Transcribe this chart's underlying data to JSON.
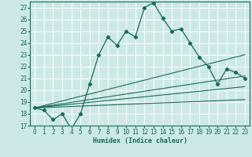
{
  "xlabel": "Humidex (Indice chaleur)",
  "bg_color": "#cce8e8",
  "grid_color": "#ffffff",
  "line_color": "#1a6b5a",
  "xlim": [
    -0.5,
    23.5
  ],
  "ylim": [
    17,
    27.5
  ],
  "xticks": [
    0,
    1,
    2,
    3,
    4,
    5,
    6,
    7,
    8,
    9,
    10,
    11,
    12,
    13,
    14,
    15,
    16,
    17,
    18,
    19,
    20,
    21,
    22,
    23
  ],
  "yticks": [
    17,
    18,
    19,
    20,
    21,
    22,
    23,
    24,
    25,
    26,
    27
  ],
  "series1_x": [
    0,
    1,
    2,
    3,
    4,
    5,
    6,
    7,
    8,
    9,
    10,
    11,
    12,
    13,
    14,
    15,
    16,
    17,
    18,
    19,
    20,
    21,
    22,
    23
  ],
  "series1_y": [
    18.5,
    18.3,
    17.5,
    18.0,
    16.7,
    18.0,
    20.5,
    23.0,
    24.5,
    23.8,
    25.0,
    24.5,
    27.0,
    27.4,
    26.1,
    25.0,
    25.2,
    24.0,
    22.8,
    22.0,
    20.5,
    21.8,
    21.5,
    21.0
  ],
  "fan_lines": [
    {
      "x": [
        0,
        23
      ],
      "y": [
        18.5,
        23.0
      ]
    },
    {
      "x": [
        0,
        23
      ],
      "y": [
        18.5,
        21.2
      ]
    },
    {
      "x": [
        0,
        23
      ],
      "y": [
        18.5,
        20.3
      ]
    },
    {
      "x": [
        0,
        23
      ],
      "y": [
        18.5,
        19.2
      ]
    }
  ]
}
